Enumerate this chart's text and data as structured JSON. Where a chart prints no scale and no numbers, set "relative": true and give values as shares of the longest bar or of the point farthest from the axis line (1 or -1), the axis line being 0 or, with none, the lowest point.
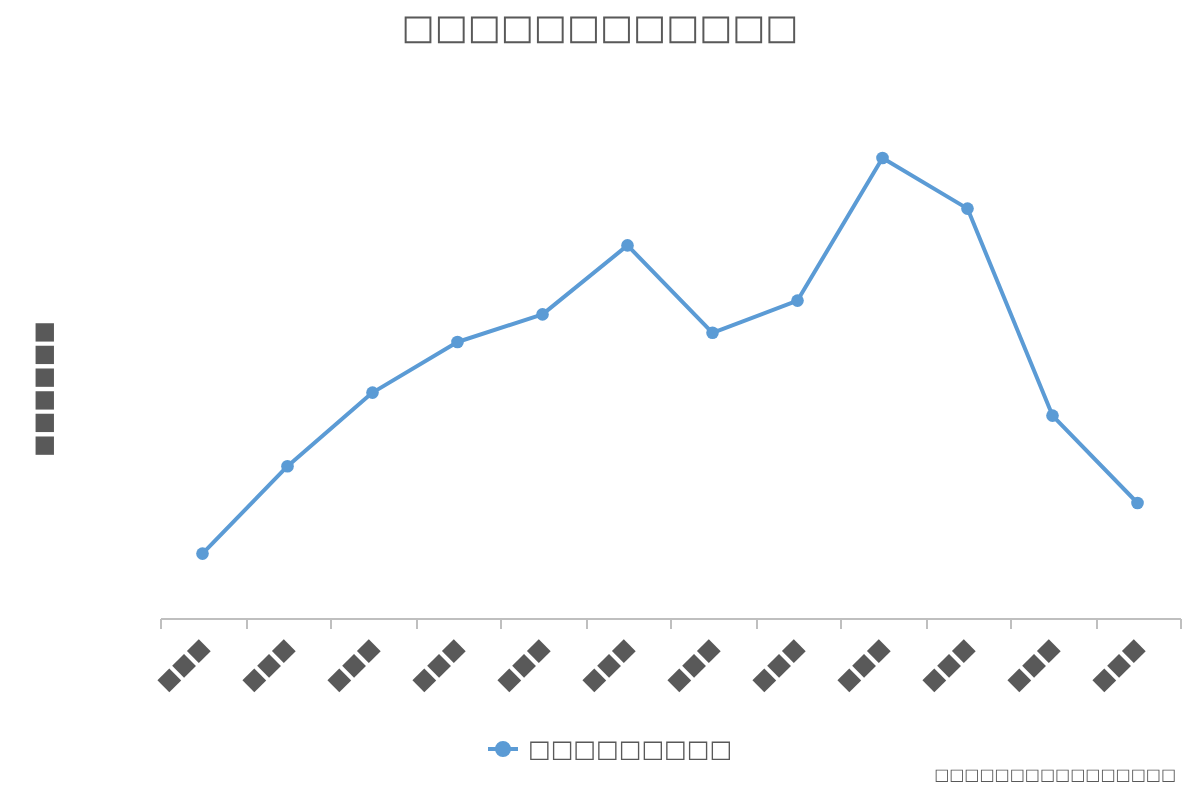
{
  "chart_data": {
    "type": "line",
    "title": "□□□□□□□□□□□□",
    "ylabel": "■■■■■■",
    "categories": [
      "■■■",
      "■■■",
      "■■■",
      "■■■",
      "■■■",
      "■■■",
      "■■■",
      "■■■",
      "■■■",
      "■■■",
      "■■■",
      "■■■"
    ],
    "series": [
      {
        "name": "□□□□□□□□□",
        "color": "#5b9bd5",
        "values": [
          0.14,
          0.33,
          0.49,
          0.6,
          0.66,
          0.81,
          0.62,
          0.69,
          1,
          0.89,
          0.44,
          0.25
        ]
      }
    ],
    "relative": true,
    "legend": "bottom",
    "marker": "circle",
    "annotations": [
      "□□□□□□□□□□□□□□□□"
    ]
  }
}
